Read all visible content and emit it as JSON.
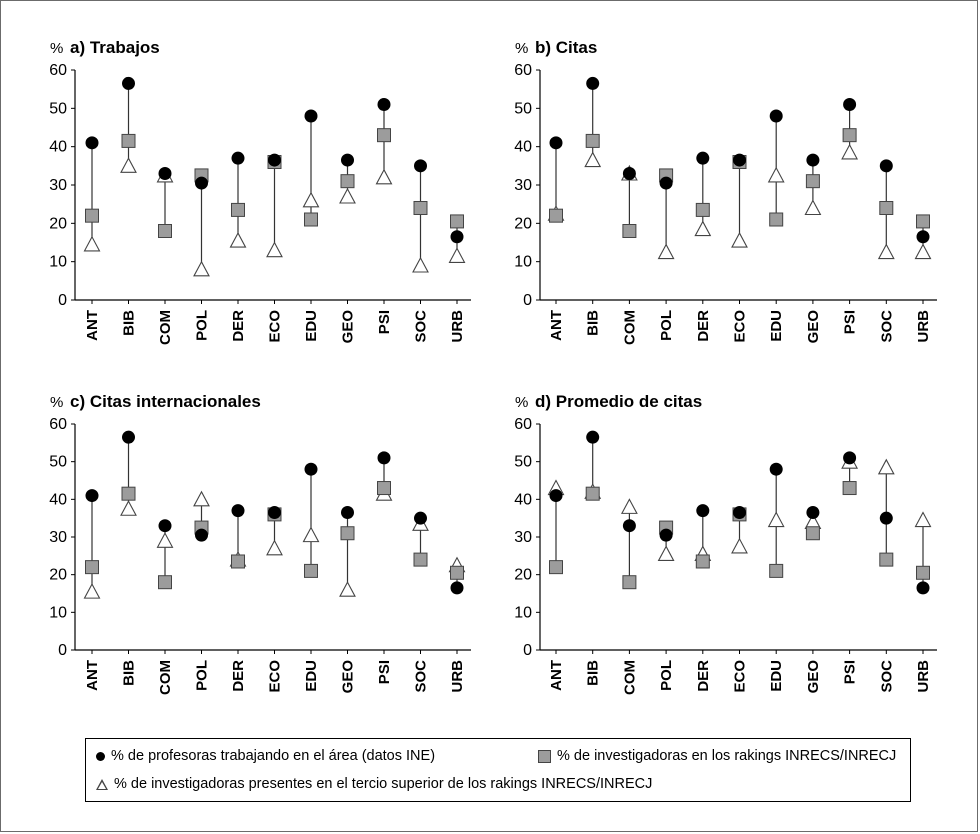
{
  "chart_data": [
    {
      "type": "scatter",
      "title": "a) Trabajos",
      "ylabel": "%",
      "ylim": [
        0,
        60
      ],
      "yticks": [
        0,
        10,
        20,
        30,
        40,
        50,
        60
      ],
      "categories": [
        "ANT",
        "BIB",
        "COM",
        "POL",
        "DER",
        "ECO",
        "EDU",
        "GEO",
        "PSI",
        "SOC",
        "URB"
      ],
      "series": [
        {
          "name": "% de profesoras trabajando en el área (datos INE)",
          "marker": "circle",
          "values": [
            41,
            56.5,
            33,
            30.5,
            37,
            36.5,
            48,
            36.5,
            51,
            35,
            16.5
          ]
        },
        {
          "name": "% de investigadoras en los rakings INRECS/INRECJ",
          "marker": "square",
          "values": [
            22,
            41.5,
            18,
            32.5,
            23.5,
            36,
            21,
            31,
            43,
            24,
            20.5
          ]
        },
        {
          "name": "% de investigadoras presentes en el tercio superior de los rakings INRECS/INRECJ",
          "marker": "triangle",
          "values": [
            14.5,
            35,
            32.5,
            8,
            15.5,
            13,
            26,
            27,
            32,
            9,
            11.5
          ]
        }
      ]
    },
    {
      "type": "scatter",
      "title": "b) Citas",
      "ylabel": "%",
      "ylim": [
        0,
        60
      ],
      "yticks": [
        0,
        10,
        20,
        30,
        40,
        50,
        60
      ],
      "categories": [
        "ANT",
        "BIB",
        "COM",
        "POL",
        "DER",
        "ECO",
        "EDU",
        "GEO",
        "PSI",
        "SOC",
        "URB"
      ],
      "series": [
        {
          "name": "% de profesoras trabajando en el área (datos INE)",
          "marker": "circle",
          "values": [
            41,
            56.5,
            33,
            30.5,
            37,
            36.5,
            48,
            36.5,
            51,
            35,
            16.5
          ]
        },
        {
          "name": "% de investigadoras en los rakings INRECS/INRECJ",
          "marker": "square",
          "values": [
            22,
            41.5,
            18,
            32.5,
            23.5,
            36,
            21,
            31,
            43,
            24,
            20.5
          ]
        },
        {
          "name": "% de investigadoras presentes en el tercio superior de los rakings INRECS/INRECJ",
          "marker": "triangle",
          "values": [
            22.5,
            36.5,
            33,
            12.5,
            18.5,
            15.5,
            32.5,
            24,
            38.5,
            12.5,
            12.5
          ]
        }
      ]
    },
    {
      "type": "scatter",
      "title": "c) Citas internacionales",
      "ylabel": "%",
      "ylim": [
        0,
        60
      ],
      "yticks": [
        0,
        10,
        20,
        30,
        40,
        50,
        60
      ],
      "categories": [
        "ANT",
        "BIB",
        "COM",
        "POL",
        "DER",
        "ECO",
        "EDU",
        "GEO",
        "PSI",
        "SOC",
        "URB"
      ],
      "series": [
        {
          "name": "% de profesoras trabajando en el área (datos INE)",
          "marker": "circle",
          "values": [
            41,
            56.5,
            33,
            30.5,
            37,
            36.5,
            48,
            36.5,
            51,
            35,
            16.5
          ]
        },
        {
          "name": "% de investigadoras en los rakings INRECS/INRECJ",
          "marker": "square",
          "values": [
            22,
            41.5,
            18,
            32.5,
            23.5,
            36,
            21,
            31,
            43,
            24,
            20.5
          ]
        },
        {
          "name": "% de investigadoras presentes en el tercio superior de los rakings INRECS/INRECJ",
          "marker": "triangle",
          "values": [
            15.5,
            37.5,
            29,
            40,
            24,
            27,
            30.5,
            16,
            41.5,
            33.5,
            22.5
          ]
        }
      ]
    },
    {
      "type": "scatter",
      "title": "d) Promedio de citas",
      "ylabel": "%",
      "ylim": [
        0,
        60
      ],
      "yticks": [
        0,
        10,
        20,
        30,
        40,
        50,
        60
      ],
      "categories": [
        "ANT",
        "BIB",
        "COM",
        "POL",
        "DER",
        "ECO",
        "EDU",
        "GEO",
        "PSI",
        "SOC",
        "URB"
      ],
      "series": [
        {
          "name": "% de profesoras trabajando en el área (datos INE)",
          "marker": "circle",
          "values": [
            41,
            56.5,
            33,
            30.5,
            37,
            36.5,
            48,
            36.5,
            51,
            35,
            16.5
          ]
        },
        {
          "name": "% de investigadoras en los rakings INRECS/INRECJ",
          "marker": "square",
          "values": [
            22,
            41.5,
            18,
            32.5,
            23.5,
            36,
            21,
            31,
            43,
            24,
            20.5
          ]
        },
        {
          "name": "% de investigadoras presentes en el tercio superior de los rakings INRECS/INRECJ",
          "marker": "triangle",
          "values": [
            43,
            42,
            38,
            25.5,
            25.5,
            27.5,
            34.5,
            34,
            50,
            48.5,
            34.5
          ]
        }
      ]
    }
  ],
  "legend": {
    "circle": "% de profesoras trabajando en el área (datos INE)",
    "square": "% de investigadoras en los rakings INRECS/INRECJ",
    "triangle": "% de investigadoras presentes en el tercio superior de los rakings INRECS/INRECJ"
  },
  "colors": {
    "circle": "#000000",
    "square": "#9c9c9c",
    "square_stroke": "#444444",
    "triangle_fill": "#ffffff",
    "triangle_stroke": "#444444",
    "stem": "#333333"
  }
}
